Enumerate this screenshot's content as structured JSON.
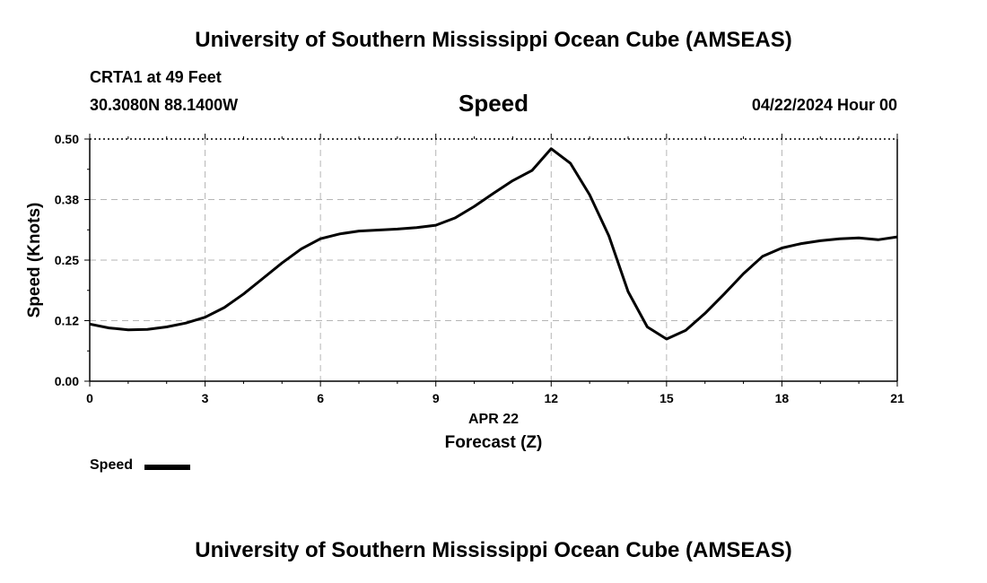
{
  "header": {
    "title": "University of Southern Mississippi Ocean Cube (AMSEAS)",
    "station": "CRTA1 at 49 Feet",
    "coords": "30.3080N  88.1400W",
    "datetime": "04/22/2024 Hour 00"
  },
  "footer": {
    "title": "University of Southern Mississippi Ocean Cube (AMSEAS)"
  },
  "legend": {
    "label": "Speed"
  },
  "chart_data": {
    "type": "line",
    "title": "Speed",
    "xlabel": "Forecast (Z)",
    "xsublabel": "APR 22",
    "ylabel": "Speed (Knots)",
    "xlim": [
      0,
      21
    ],
    "ylim": [
      0,
      0.5
    ],
    "xticks": [
      0,
      3,
      6,
      9,
      12,
      15,
      18,
      21
    ],
    "xtick_labels": [
      "0",
      "3",
      "6",
      "9",
      "12",
      "15",
      "18",
      "21"
    ],
    "yticks": [
      0,
      0.125,
      0.25,
      0.375,
      0.5
    ],
    "ytick_labels": [
      "0.00",
      "0.12",
      "0.25",
      "0.38",
      "0.50"
    ],
    "grid": true,
    "legend": "bottom-left",
    "series": [
      {
        "name": "Speed",
        "color": "#000000",
        "x": [
          0,
          0.5,
          1,
          1.5,
          2,
          2.5,
          3,
          3.5,
          4,
          4.5,
          5,
          5.5,
          6,
          6.5,
          7,
          7.5,
          8,
          8.5,
          9,
          9.5,
          10,
          10.5,
          11,
          11.5,
          12,
          12.5,
          13,
          13.5,
          14,
          14.5,
          15,
          15.5,
          16,
          16.5,
          17,
          17.5,
          18,
          18.5,
          19,
          19.5,
          20,
          20.5,
          21
        ],
        "values": [
          0.118,
          0.11,
          0.106,
          0.107,
          0.112,
          0.12,
          0.132,
          0.152,
          0.18,
          0.212,
          0.244,
          0.273,
          0.294,
          0.304,
          0.31,
          0.312,
          0.314,
          0.317,
          0.322,
          0.337,
          0.361,
          0.388,
          0.414,
          0.435,
          0.48,
          0.45,
          0.385,
          0.3,
          0.185,
          0.112,
          0.087,
          0.105,
          0.14,
          0.18,
          0.222,
          0.258,
          0.275,
          0.284,
          0.29,
          0.294,
          0.296,
          0.292,
          0.298
        ]
      }
    ]
  }
}
